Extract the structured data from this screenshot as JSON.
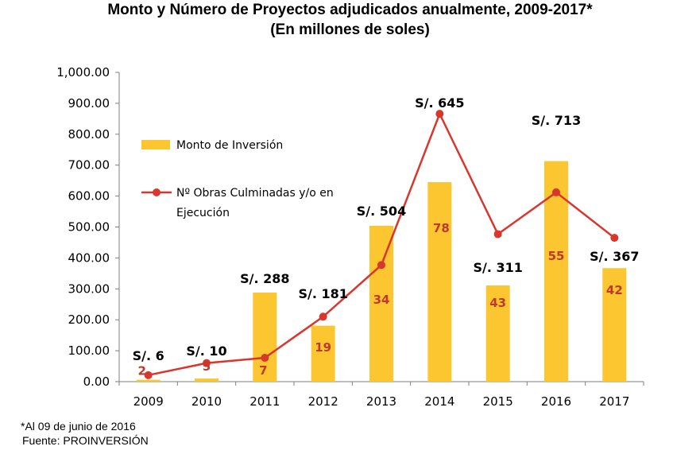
{
  "title_line1": "Monto y Número de Proyectos adjudicados anualmente, 2009-2017*",
  "title_line2": "(En millones de soles)",
  "footnote": "*Al 09 de junio de 2016",
  "source": "Fuente: PROINVERSIÓN",
  "colors": {
    "bar": "#fcc630",
    "line": "#d9362e",
    "count_label": "#c0392b"
  },
  "chart_data": {
    "type": "bar",
    "categories": [
      "2009",
      "2010",
      "2011",
      "2012",
      "2013",
      "2014",
      "2015",
      "2016",
      "2017"
    ],
    "ylim": [
      0,
      1000
    ],
    "ytick_labels": [
      "0.00",
      "100.00",
      "200.00",
      "300.00",
      "400.00",
      "500.00",
      "600.00",
      "700.00",
      "800.00",
      "900.00",
      "1,000.00"
    ],
    "series": [
      {
        "name": "Monto de Inversión",
        "type": "bar",
        "values": [
          6,
          10,
          288,
          181,
          504,
          645,
          311,
          713,
          367
        ],
        "labels": [
          "S/. 6",
          "S/. 10",
          "S/. 288",
          "S/. 181",
          "S/. 504",
          "S/. 645",
          "S/. 311",
          "S/. 713",
          "S/. 367"
        ]
      },
      {
        "name": "Nº Obras Culminadas y/o en Ejecución",
        "type": "line",
        "values": [
          21,
          60,
          77,
          210,
          377,
          866,
          477,
          612,
          465
        ],
        "labels": [
          "2",
          "5",
          "7",
          "19",
          "34",
          "78",
          "43",
          "55",
          "42"
        ]
      }
    ],
    "legend": {
      "position": "top-left",
      "bar_label": "Monto de Inversión",
      "line_label_1": "Nº Obras Culminadas y/o en",
      "line_label_2": "Ejecución"
    }
  }
}
